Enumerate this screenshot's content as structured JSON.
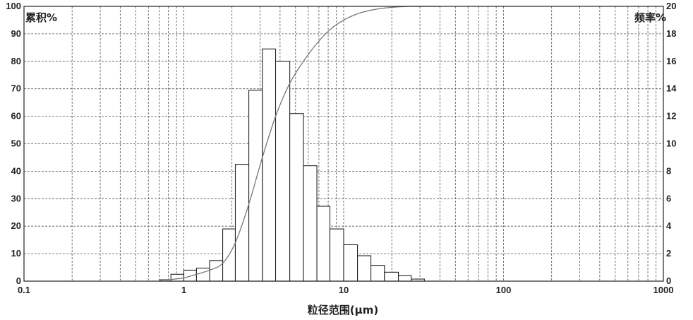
{
  "chart_data": {
    "type": "bar",
    "xlabel": "粒径范围(μm)",
    "ylabel_left": "累积%",
    "ylabel_right": "频率%",
    "x_scale": "log",
    "xlim": [
      0.1,
      1000
    ],
    "ylim_left": [
      0,
      100
    ],
    "ylim_right": [
      0,
      20
    ],
    "grid": true,
    "x_ticks": [
      "0.1",
      "1",
      "10",
      "100",
      "1000"
    ],
    "y_left_ticks": [
      "0",
      "10",
      "20",
      "30",
      "40",
      "50",
      "60",
      "70",
      "80",
      "90",
      "100"
    ],
    "y_right_ticks": [
      "0",
      "2",
      "4",
      "6",
      "8",
      "10",
      "12",
      "14",
      "16",
      "18",
      "20"
    ],
    "series": [
      {
        "kind": "histogram",
        "axis": "right",
        "bins": [
          {
            "x0": 0.71,
            "x1": 0.83,
            "value": 0.1
          },
          {
            "x0": 0.83,
            "x1": 1.0,
            "value": 0.5
          },
          {
            "x0": 1.0,
            "x1": 1.2,
            "value": 0.8
          },
          {
            "x0": 1.2,
            "x1": 1.45,
            "value": 0.95
          },
          {
            "x0": 1.45,
            "x1": 1.75,
            "value": 1.5
          },
          {
            "x0": 1.75,
            "x1": 2.1,
            "value": 3.8
          },
          {
            "x0": 2.1,
            "x1": 2.55,
            "value": 8.5
          },
          {
            "x0": 2.55,
            "x1": 3.1,
            "value": 13.9
          },
          {
            "x0": 3.1,
            "x1": 3.75,
            "value": 16.9
          },
          {
            "x0": 3.75,
            "x1": 4.6,
            "value": 16.0
          },
          {
            "x0": 4.6,
            "x1": 5.6,
            "value": 12.2
          },
          {
            "x0": 5.6,
            "x1": 6.8,
            "value": 8.4
          },
          {
            "x0": 6.8,
            "x1": 8.2,
            "value": 5.45
          },
          {
            "x0": 8.2,
            "x1": 10.0,
            "value": 3.8
          },
          {
            "x0": 10.0,
            "x1": 12.2,
            "value": 2.65
          },
          {
            "x0": 12.2,
            "x1": 14.8,
            "value": 1.85
          },
          {
            "x0": 14.8,
            "x1": 18.0,
            "value": 1.15
          },
          {
            "x0": 18.0,
            "x1": 22.0,
            "value": 0.65
          },
          {
            "x0": 22.0,
            "x1": 26.5,
            "value": 0.4
          },
          {
            "x0": 26.5,
            "x1": 32.0,
            "value": 0.15
          }
        ]
      },
      {
        "kind": "line",
        "axis": "left",
        "x": [
          0.8,
          1.0,
          1.2,
          1.45,
          1.75,
          2.1,
          2.55,
          3.1,
          3.75,
          4.6,
          5.6,
          6.8,
          8.2,
          10.0,
          12.2,
          14.8,
          18.0,
          22.0,
          26.5,
          32.0
        ],
        "y": [
          0.5,
          1.2,
          2.5,
          4.0,
          6.5,
          14.0,
          28.0,
          45.0,
          60.0,
          72.0,
          80.0,
          86.5,
          91.5,
          95.0,
          97.3,
          98.6,
          99.4,
          99.8,
          100.0,
          100.0
        ]
      }
    ]
  }
}
